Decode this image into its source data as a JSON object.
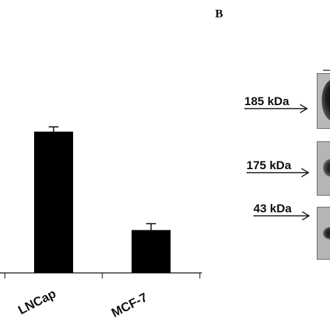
{
  "panel_b": {
    "letter": "B",
    "markers": [
      {
        "label": "185 kDa"
      },
      {
        "label": "175 kDa"
      },
      {
        "label": "43 kDa"
      }
    ]
  },
  "chart_data": {
    "type": "bar",
    "categories": [
      "LNCap",
      "MCF-7"
    ],
    "values": [
      0.89,
      0.27
    ],
    "errors": [
      0.03,
      0.04
    ],
    "ylim": [
      0,
      1.0
    ],
    "title": "",
    "xlabel": "",
    "ylabel": "",
    "bar_color": "#000000"
  }
}
